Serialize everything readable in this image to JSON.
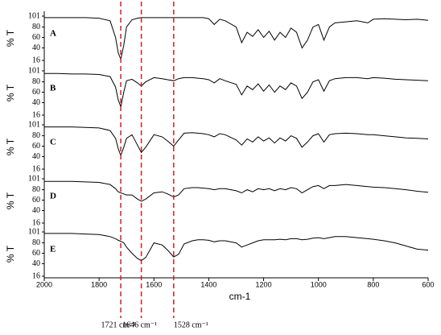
{
  "chart_data": {
    "type": "line",
    "xlabel": "cm-1",
    "ylabel": "% T",
    "xlim": [
      2000,
      600
    ],
    "xticks": [
      2000,
      1800,
      1600,
      1400,
      1200,
      1000,
      800,
      600
    ],
    "ylim": [
      16,
      101
    ],
    "yticks": [
      101,
      80,
      60,
      40,
      16
    ],
    "x": [
      2000,
      1950,
      1900,
      1850,
      1800,
      1760,
      1740,
      1730,
      1721,
      1710,
      1700,
      1680,
      1660,
      1646,
      1630,
      1600,
      1570,
      1550,
      1528,
      1510,
      1490,
      1460,
      1440,
      1420,
      1400,
      1380,
      1360,
      1340,
      1300,
      1280,
      1260,
      1240,
      1220,
      1200,
      1180,
      1160,
      1140,
      1120,
      1100,
      1080,
      1060,
      1040,
      1020,
      1000,
      980,
      960,
      940,
      900,
      860,
      820,
      800,
      760,
      720,
      680,
      640,
      600
    ],
    "series": [
      {
        "name": "A",
        "color": "#000000",
        "values": [
          98,
          98,
          98,
          98,
          97,
          92,
          60,
          30,
          18,
          45,
          80,
          94,
          97,
          98,
          98,
          98,
          98,
          98,
          98,
          98,
          98,
          98,
          98,
          98,
          96,
          85,
          95,
          92,
          80,
          50,
          70,
          62,
          75,
          60,
          72,
          55,
          70,
          60,
          78,
          70,
          40,
          55,
          80,
          85,
          55,
          80,
          88,
          90,
          92,
          88,
          95,
          96,
          95,
          94,
          95,
          93
        ]
      },
      {
        "name": "B",
        "color": "#000000",
        "values": [
          96,
          96,
          95,
          95,
          94,
          90,
          70,
          45,
          32,
          60,
          82,
          85,
          78,
          72,
          80,
          88,
          86,
          84,
          82,
          86,
          88,
          88,
          87,
          86,
          84,
          78,
          86,
          82,
          75,
          55,
          72,
          65,
          76,
          62,
          74,
          60,
          72,
          65,
          78,
          72,
          48,
          60,
          80,
          84,
          62,
          82,
          86,
          88,
          88,
          86,
          88,
          87,
          85,
          84,
          83,
          82
        ]
      },
      {
        "name": "C",
        "color": "#000000",
        "values": [
          97,
          97,
          97,
          96,
          95,
          90,
          75,
          55,
          42,
          58,
          75,
          82,
          62,
          48,
          58,
          82,
          78,
          70,
          60,
          72,
          85,
          86,
          85,
          84,
          82,
          78,
          84,
          82,
          72,
          62,
          74,
          68,
          78,
          70,
          76,
          66,
          76,
          70,
          80,
          75,
          58,
          68,
          80,
          84,
          68,
          82,
          84,
          85,
          84,
          82,
          82,
          80,
          78,
          76,
          75,
          74
        ]
      },
      {
        "name": "D",
        "color": "#000000",
        "values": [
          96,
          96,
          96,
          95,
          94,
          90,
          82,
          76,
          74,
          72,
          70,
          70,
          62,
          58,
          62,
          74,
          76,
          72,
          66,
          70,
          82,
          84,
          84,
          83,
          82,
          80,
          82,
          82,
          78,
          74,
          80,
          76,
          82,
          80,
          82,
          78,
          82,
          80,
          84,
          82,
          74,
          80,
          86,
          88,
          82,
          88,
          88,
          90,
          88,
          86,
          85,
          84,
          82,
          80,
          77,
          75
        ]
      },
      {
        "name": "E",
        "color": "#000000",
        "values": [
          98,
          98,
          98,
          97,
          96,
          92,
          88,
          85,
          83,
          80,
          72,
          60,
          50,
          46,
          52,
          80,
          76,
          66,
          53,
          58,
          78,
          84,
          86,
          86,
          85,
          82,
          84,
          84,
          80,
          72,
          76,
          80,
          84,
          86,
          86,
          86,
          87,
          86,
          88,
          88,
          86,
          87,
          89,
          90,
          88,
          90,
          92,
          92,
          90,
          88,
          87,
          84,
          80,
          74,
          68,
          66
        ]
      }
    ],
    "vlines": [
      {
        "value": 1721,
        "label": "1721 cm⁻¹",
        "color": "#cc2222"
      },
      {
        "value": 1646,
        "label": "1646 cm⁻¹",
        "color": "#cc2222"
      },
      {
        "value": 1528,
        "label": "1528 cm⁻¹",
        "color": "#cc2222"
      }
    ]
  }
}
